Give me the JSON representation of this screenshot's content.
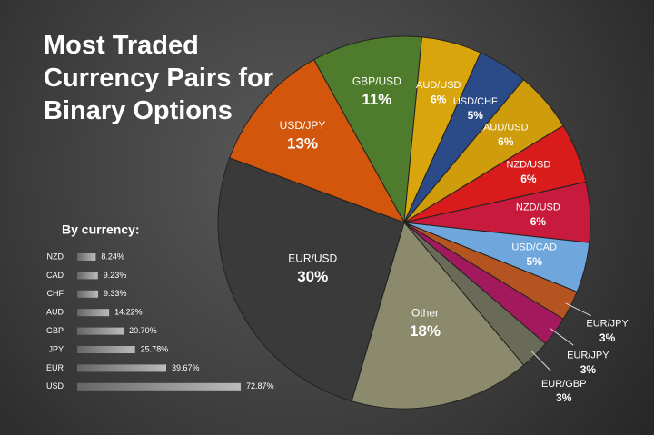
{
  "chart_data": [
    {
      "type": "pie",
      "title": "Most Traded Currency Pairs for Binary Options",
      "categories": [
        "GBP/USD",
        "AUD/USD",
        "USD/CHF",
        "AUD/USD",
        "NZD/USD",
        "NZD/USD",
        "USD/CAD",
        "EUR/JPY",
        "EUR/JPY",
        "EUR/GBP",
        "Other",
        "EUR/USD",
        "USD/JPY"
      ],
      "values": [
        11,
        6,
        5,
        6,
        6,
        6,
        5,
        3,
        3,
        3,
        18,
        30,
        13
      ],
      "value_labels": [
        "11%",
        "6%",
        "5%",
        "6%",
        "6%",
        "6%",
        "5%",
        "3%",
        "3%",
        "3%",
        "18%",
        "30%",
        "13%"
      ],
      "colors": [
        "#4f7c2c",
        "#d9a50c",
        "#2b4a88",
        "#cf9c0b",
        "#d81c1c",
        "#c71a3c",
        "#6fa7dd",
        "#b45420",
        "#a3195d",
        "#6a6a58",
        "#8b8a6c",
        "#3a3a3a",
        "#d2570d"
      ]
    },
    {
      "type": "hbar",
      "title": "By currency:",
      "categories": [
        "NZD",
        "CAD",
        "CHF",
        "AUD",
        "GBP",
        "JPY",
        "EUR",
        "USD"
      ],
      "values": [
        8.24,
        9.23,
        9.33,
        14.22,
        20.7,
        25.78,
        39.67,
        72.87
      ],
      "value_labels": [
        "8.24%",
        "9.23%",
        "9.33%",
        "14.22%",
        "20.70%",
        "25.78%",
        "39.67%",
        "72.87%"
      ]
    }
  ]
}
